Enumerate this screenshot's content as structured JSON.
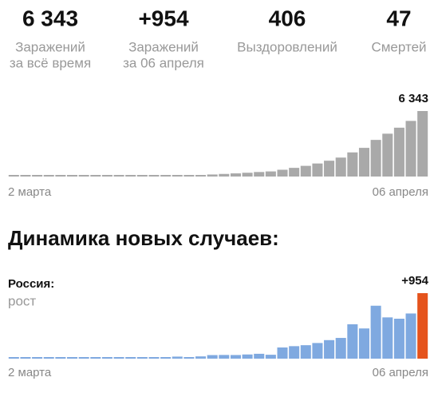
{
  "stats": [
    {
      "value": "6 343",
      "label": [
        "Заражений",
        "за всё время"
      ]
    },
    {
      "value": "+954",
      "label": [
        "Заражений",
        "за 06 апреля"
      ]
    },
    {
      "value": "406",
      "label": [
        "Выздоровлений"
      ]
    },
    {
      "value": "47",
      "label": [
        "Смертей"
      ]
    }
  ],
  "chart_data": [
    {
      "type": "bar",
      "categories": [
        "2 марта",
        null,
        null,
        null,
        null,
        null,
        null,
        null,
        null,
        null,
        null,
        null,
        null,
        null,
        null,
        null,
        null,
        null,
        null,
        null,
        null,
        null,
        null,
        null,
        null,
        null,
        null,
        null,
        null,
        null,
        null,
        null,
        null,
        null,
        null,
        "06 апреля"
      ],
      "values": [
        3,
        3,
        3,
        4,
        10,
        14,
        17,
        17,
        20,
        28,
        34,
        45,
        59,
        63,
        93,
        114,
        147,
        199,
        253,
        306,
        367,
        438,
        495,
        658,
        840,
        1036,
        1264,
        1534,
        1836,
        2337,
        2777,
        3548,
        4149,
        4731,
        5389,
        6343
      ],
      "value_labels": [
        null,
        null,
        null,
        null,
        null,
        null,
        null,
        null,
        null,
        null,
        null,
        null,
        null,
        null,
        null,
        null,
        null,
        null,
        null,
        null,
        null,
        null,
        null,
        null,
        null,
        null,
        null,
        null,
        null,
        null,
        null,
        null,
        null,
        null,
        null,
        "6 343"
      ],
      "color": "#a9a9a9"
    },
    {
      "type": "bar",
      "title": "Динамика новых случаев:",
      "region": "Россия:",
      "trend": "рост",
      "categories": [
        "2 марта",
        null,
        null,
        null,
        null,
        null,
        null,
        null,
        null,
        null,
        null,
        null,
        null,
        null,
        null,
        null,
        null,
        null,
        null,
        null,
        null,
        null,
        null,
        null,
        null,
        null,
        null,
        null,
        null,
        null,
        null,
        null,
        null,
        null,
        null,
        "06 апреля"
      ],
      "values": [
        0,
        0,
        0,
        1,
        6,
        4,
        3,
        0,
        3,
        8,
        6,
        11,
        14,
        4,
        30,
        21,
        33,
        52,
        54,
        53,
        61,
        71,
        57,
        163,
        182,
        196,
        228,
        270,
        302,
        501,
        440,
        771,
        601,
        582,
        658,
        954
      ],
      "value_labels": [
        null,
        null,
        null,
        null,
        null,
        null,
        null,
        null,
        null,
        null,
        null,
        null,
        null,
        null,
        null,
        null,
        null,
        null,
        null,
        null,
        null,
        null,
        null,
        null,
        null,
        null,
        null,
        null,
        null,
        null,
        null,
        null,
        null,
        null,
        null,
        "+954"
      ],
      "color": "#7fa9e0",
      "last_color": "#e5531c"
    }
  ]
}
